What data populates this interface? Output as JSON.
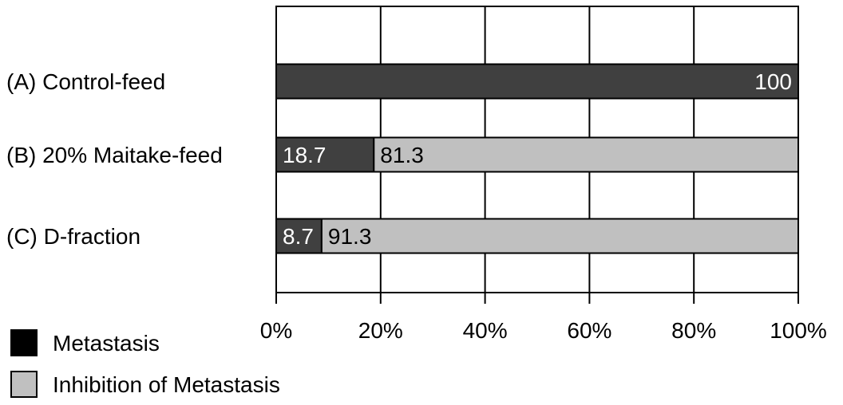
{
  "chart_data": {
    "type": "bar",
    "orientation": "horizontal",
    "stacked": true,
    "categories": [
      "(A) Control-feed",
      "(B) 20% Maitake-feed",
      "(C) D-fraction"
    ],
    "series": [
      {
        "name": "Metastasis",
        "values": [
          100,
          18.7,
          8.7
        ],
        "labels": [
          "100",
          "18.7",
          "8.7"
        ],
        "color": "#404040"
      },
      {
        "name": "Inhibition of Metastasis",
        "values": [
          0,
          81.3,
          91.3
        ],
        "labels": [
          "",
          "81.3",
          "91.3"
        ],
        "color": "#c0c0c0"
      }
    ],
    "xlim": [
      0,
      100
    ],
    "xticks": [
      0,
      20,
      40,
      60,
      80,
      100
    ],
    "xtick_labels": [
      "0%",
      "20%",
      "40%",
      "60%",
      "80%",
      "100%"
    ],
    "grid": true,
    "legend_position": "bottom-left"
  }
}
